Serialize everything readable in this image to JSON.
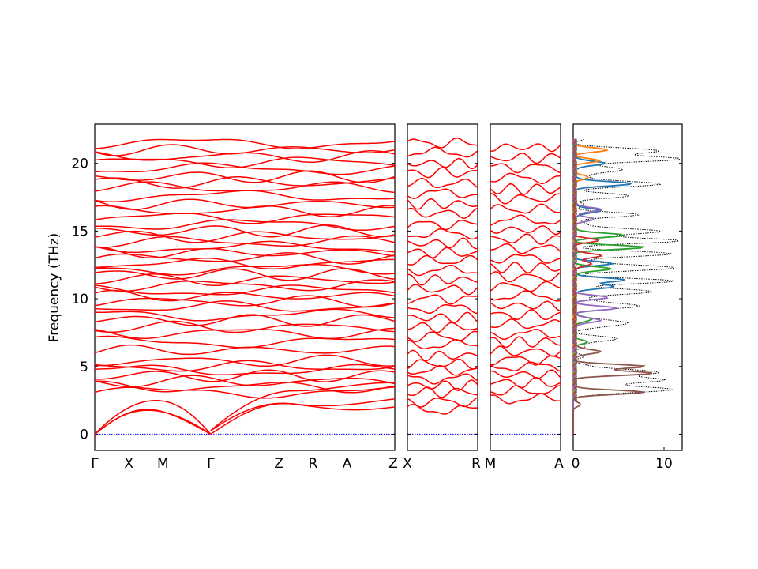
{
  "figure": {
    "ylabel": "Frequency (THz)",
    "line_color": "#ff0000",
    "zero_line_color": "#0000ff",
    "dos_total_color": "#000000"
  },
  "chart_data": [
    {
      "type": "line",
      "panel": "band-segment-1",
      "ylabel": "Frequency (THz)",
      "ylim": [
        -1.2,
        22.9
      ],
      "yticks": [
        0,
        5,
        10,
        15,
        20
      ],
      "x_ticks": [
        {
          "label": "Γ",
          "x": 0.0
        },
        {
          "label": "X",
          "x": 0.5
        },
        {
          "label": "M",
          "x": 1.0
        },
        {
          "label": "Γ",
          "x": 1.7
        },
        {
          "label": "Z",
          "x": 2.7
        },
        {
          "label": "R",
          "x": 3.2
        },
        {
          "label": "A",
          "x": 3.7
        },
        {
          "label": "Z",
          "x": 4.4
        }
      ],
      "gamma_x": [
        0.0,
        1.7
      ],
      "acoustic_endpoint_freqs": [
        2.1,
        2.4,
        3.5
      ],
      "optical_freqs": [
        3.1,
        3.5,
        3.9,
        4.3,
        4.7,
        5.0,
        5.4,
        6.2,
        6.8,
        7.5,
        7.9,
        8.4,
        8.8,
        9.4,
        9.8,
        10.2,
        10.6,
        11.0,
        11.4,
        11.8,
        12.2,
        12.6,
        13.0,
        13.4,
        13.8,
        14.2,
        14.6,
        15.0,
        15.5,
        16.0,
        16.5,
        17.0,
        17.6,
        18.2,
        18.6,
        19.0,
        19.6,
        20.1,
        20.5,
        21.0,
        21.5
      ]
    },
    {
      "type": "line",
      "panel": "band-segment-2",
      "ylim": [
        -1.2,
        22.9
      ],
      "x_ticks": [
        {
          "label": "X",
          "x": 0.0
        },
        {
          "label": "R",
          "x": 1.0
        }
      ],
      "band_freqs": [
        1.8,
        2.4,
        3.1,
        3.6,
        4.1,
        4.7,
        5.2,
        5.8,
        6.6,
        7.2,
        7.9,
        8.6,
        9.3,
        10.0,
        10.7,
        11.4,
        12.1,
        12.8,
        13.4,
        14.1,
        14.8,
        15.5,
        16.3,
        17.0,
        17.8,
        18.5,
        19.3,
        20.0,
        20.8,
        21.5
      ]
    },
    {
      "type": "line",
      "panel": "band-segment-3",
      "ylim": [
        -1.2,
        22.9
      ],
      "x_ticks": [
        {
          "label": "M",
          "x": 0.0
        },
        {
          "label": "A",
          "x": 1.0
        }
      ],
      "band_freqs": [
        2.6,
        3.2,
        3.8,
        4.4,
        5.0,
        5.5,
        6.1,
        6.8,
        7.4,
        8.1,
        8.8,
        9.5,
        10.2,
        10.9,
        11.6,
        12.3,
        13.0,
        13.7,
        14.4,
        15.1,
        15.8,
        16.6,
        17.4,
        18.1,
        18.9,
        19.7,
        20.4,
        21.2
      ]
    },
    {
      "type": "line",
      "panel": "dos",
      "xlim": [
        0,
        12
      ],
      "xticks": [
        0,
        10
      ],
      "ylim": [
        -1.2,
        22.9
      ],
      "series": [
        {
          "color": "#000000",
          "style": "dotted",
          "peaks": [
            [
              3.3,
              11
            ],
            [
              4.0,
              10
            ],
            [
              4.6,
              9
            ],
            [
              7.0,
              4
            ],
            [
              8.2,
              6
            ],
            [
              9.5,
              7
            ],
            [
              10.5,
              8
            ],
            [
              11.3,
              10
            ],
            [
              12.3,
              11
            ],
            [
              13.3,
              10
            ],
            [
              14.3,
              11
            ],
            [
              15.0,
              9
            ],
            [
              16.2,
              6
            ],
            [
              17.6,
              5
            ],
            [
              18.5,
              9
            ],
            [
              19.5,
              5
            ],
            [
              20.3,
              11
            ],
            [
              20.9,
              9
            ]
          ]
        },
        {
          "color": "#1f77b4",
          "style": "solid",
          "peaks": [
            [
              10.9,
              4.5
            ],
            [
              11.4,
              5.5
            ],
            [
              12.6,
              4
            ],
            [
              16.5,
              3
            ],
            [
              18.5,
              6.5
            ],
            [
              20.0,
              3.5
            ]
          ]
        },
        {
          "color": "#ff7f0e",
          "style": "solid",
          "peaks": [
            [
              20.2,
              2.5
            ],
            [
              21.0,
              3.5
            ],
            [
              19.0,
              1.5
            ]
          ]
        },
        {
          "color": "#2ca02c",
          "style": "solid",
          "peaks": [
            [
              13.8,
              7.5
            ],
            [
              14.7,
              5.5
            ],
            [
              12.2,
              4
            ],
            [
              8.5,
              2
            ],
            [
              6.8,
              1.2
            ]
          ]
        },
        {
          "color": "#d62728",
          "style": "solid",
          "peaks": [
            [
              13.2,
              3
            ],
            [
              14.3,
              2.5
            ],
            [
              12.6,
              2
            ]
          ]
        },
        {
          "color": "#9467bd",
          "style": "solid",
          "peaks": [
            [
              9.3,
              4.5
            ],
            [
              10.1,
              3.5
            ],
            [
              16.6,
              3
            ],
            [
              15.9,
              2.2
            ],
            [
              8.4,
              3
            ]
          ]
        },
        {
          "color": "#8c564b",
          "style": "solid",
          "peaks": [
            [
              3.1,
              7.5
            ],
            [
              4.5,
              8.5
            ],
            [
              5.0,
              7.5
            ],
            [
              6.1,
              3
            ],
            [
              2.2,
              0.8
            ]
          ]
        }
      ]
    }
  ]
}
